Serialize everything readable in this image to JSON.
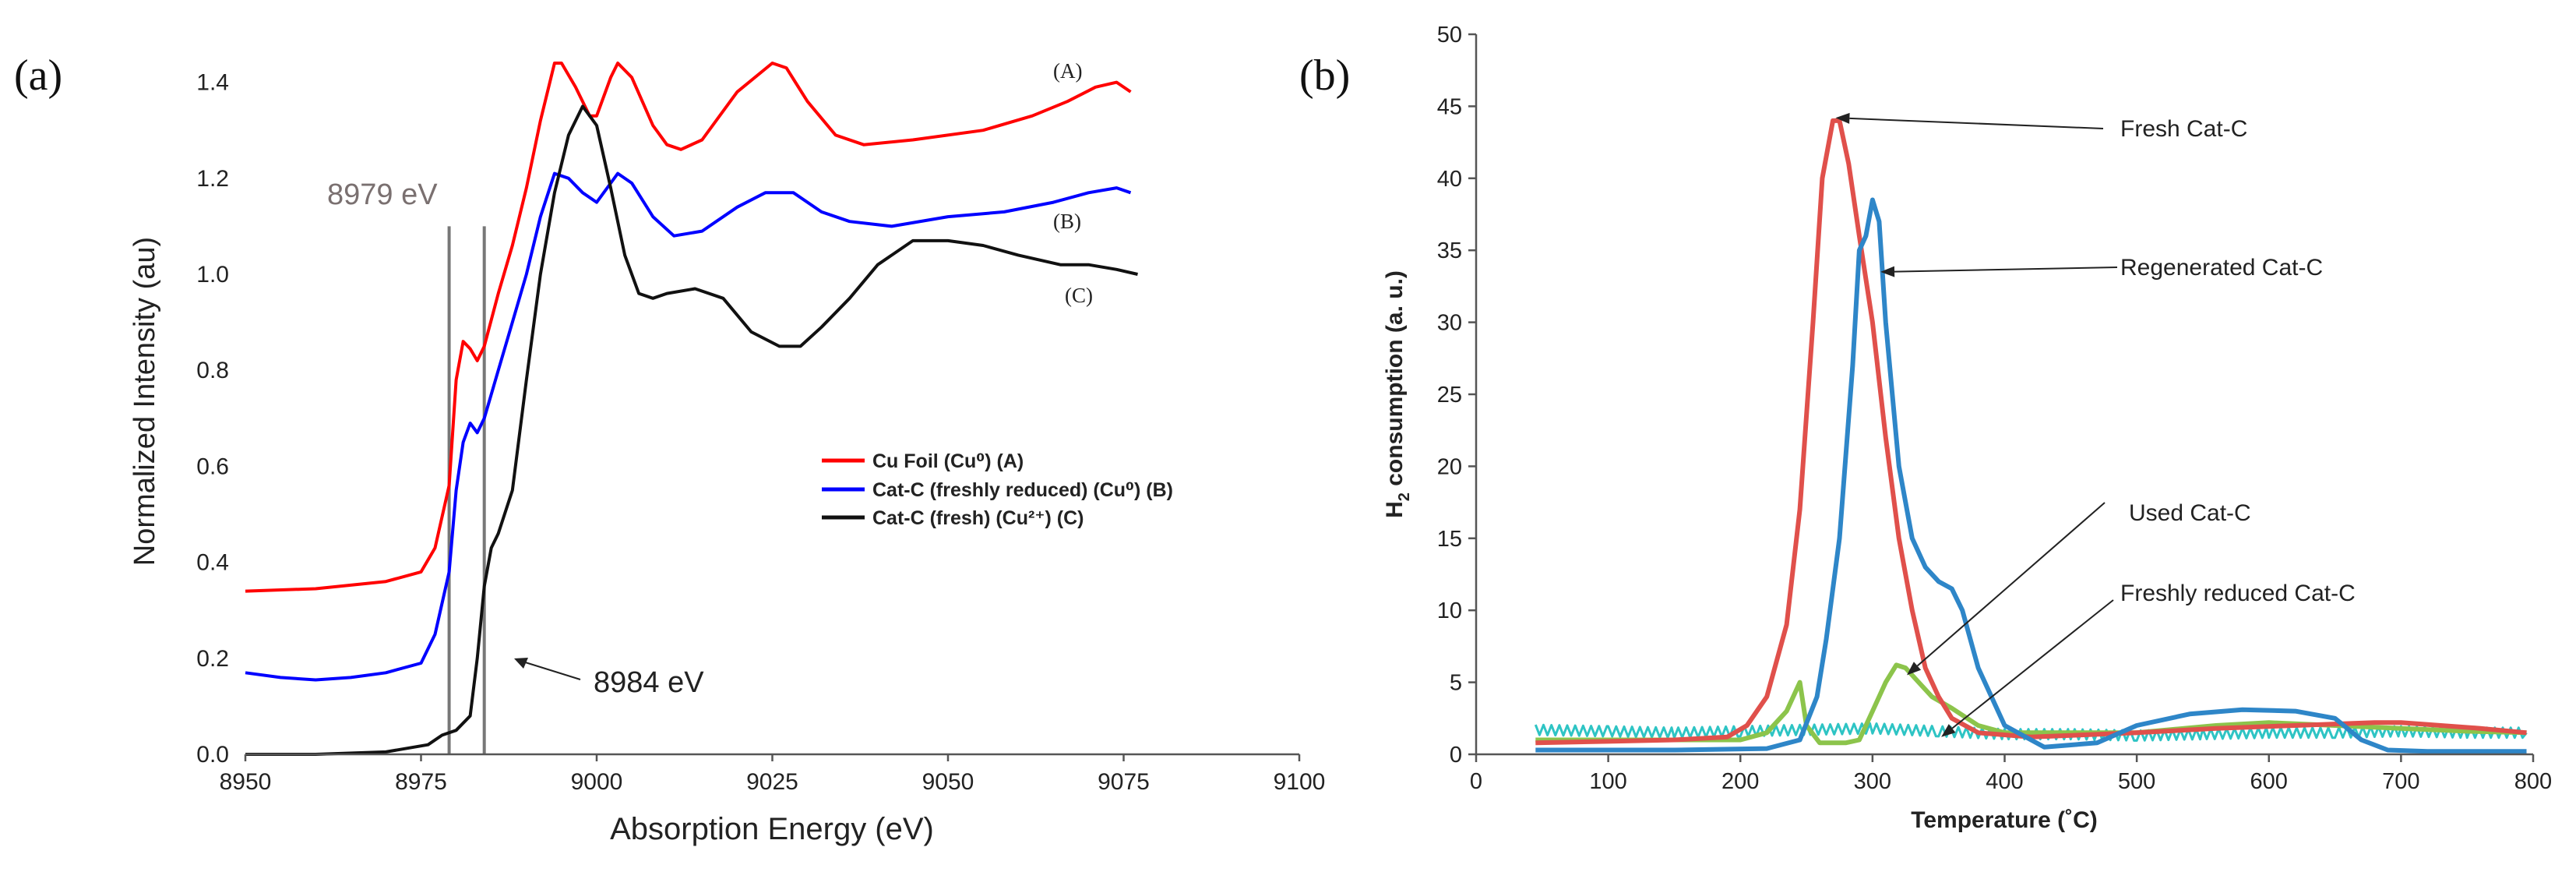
{
  "chart_data": [
    {
      "type": "line",
      "panel_label": "(a)",
      "xlabel": "Absorption Energy (eV)",
      "ylabel": "Normalized Intensity (au)",
      "xlim": [
        8950,
        9100
      ],
      "ylim": [
        0.0,
        1.5
      ],
      "xticks": [
        "8950",
        "8975",
        "9000",
        "9025",
        "9050",
        "9075",
        "9100"
      ],
      "yticks": [
        "0.0",
        "0.2",
        "0.4",
        "0.6",
        "0.8",
        "1.0",
        "1.2",
        "1.4"
      ],
      "series": [
        {
          "name": "Cu Foil (Cu⁰) (A)",
          "curve_label": "(A)",
          "color": "#ff0000",
          "points": [
            [
              8950,
              0.34
            ],
            [
              8960,
              0.345
            ],
            [
              8970,
              0.36
            ],
            [
              8975,
              0.38
            ],
            [
              8977,
              0.43
            ],
            [
              8979,
              0.56
            ],
            [
              8980,
              0.78
            ],
            [
              8981,
              0.86
            ],
            [
              8982,
              0.845
            ],
            [
              8983,
              0.82
            ],
            [
              8984,
              0.85
            ],
            [
              8986,
              0.96
            ],
            [
              8988,
              1.06
            ],
            [
              8990,
              1.18
            ],
            [
              8992,
              1.32
            ],
            [
              8994,
              1.44
            ],
            [
              8995,
              1.44
            ],
            [
              8997,
              1.39
            ],
            [
              8999,
              1.33
            ],
            [
              9000,
              1.33
            ],
            [
              9002,
              1.41
            ],
            [
              9003,
              1.44
            ],
            [
              9005,
              1.41
            ],
            [
              9008,
              1.31
            ],
            [
              9010,
              1.27
            ],
            [
              9012,
              1.26
            ],
            [
              9015,
              1.28
            ],
            [
              9020,
              1.38
            ],
            [
              9025,
              1.44
            ],
            [
              9027,
              1.43
            ],
            [
              9030,
              1.36
            ],
            [
              9034,
              1.29
            ],
            [
              9038,
              1.27
            ],
            [
              9045,
              1.28
            ],
            [
              9055,
              1.3
            ],
            [
              9062,
              1.33
            ],
            [
              9067,
              1.36
            ],
            [
              9071,
              1.39
            ],
            [
              9074,
              1.4
            ],
            [
              9076,
              1.38
            ]
          ]
        },
        {
          "name": "Cat-C (freshly reduced) (Cu⁰) (B)",
          "curve_label": "(B)",
          "color": "#0000ff",
          "points": [
            [
              8950,
              0.17
            ],
            [
              8955,
              0.16
            ],
            [
              8960,
              0.155
            ],
            [
              8965,
              0.16
            ],
            [
              8970,
              0.17
            ],
            [
              8975,
              0.19
            ],
            [
              8977,
              0.25
            ],
            [
              8979,
              0.38
            ],
            [
              8980,
              0.55
            ],
            [
              8981,
              0.65
            ],
            [
              8982,
              0.69
            ],
            [
              8983,
              0.67
            ],
            [
              8984,
              0.7
            ],
            [
              8986,
              0.8
            ],
            [
              8988,
              0.9
            ],
            [
              8990,
              1.0
            ],
            [
              8992,
              1.12
            ],
            [
              8994,
              1.21
            ],
            [
              8996,
              1.2
            ],
            [
              8998,
              1.17
            ],
            [
              9000,
              1.15
            ],
            [
              9002,
              1.19
            ],
            [
              9003,
              1.21
            ],
            [
              9005,
              1.19
            ],
            [
              9008,
              1.12
            ],
            [
              9011,
              1.08
            ],
            [
              9015,
              1.09
            ],
            [
              9020,
              1.14
            ],
            [
              9024,
              1.17
            ],
            [
              9028,
              1.17
            ],
            [
              9032,
              1.13
            ],
            [
              9036,
              1.11
            ],
            [
              9042,
              1.1
            ],
            [
              9050,
              1.12
            ],
            [
              9058,
              1.13
            ],
            [
              9065,
              1.15
            ],
            [
              9070,
              1.17
            ],
            [
              9074,
              1.18
            ],
            [
              9076,
              1.17
            ]
          ]
        },
        {
          "name": "Cat-C (fresh) (Cu²⁺) (C)",
          "curve_label": "(C)",
          "color": "#111111",
          "points": [
            [
              8950,
              0.0
            ],
            [
              8960,
              0.0
            ],
            [
              8970,
              0.005
            ],
            [
              8976,
              0.02
            ],
            [
              8978,
              0.04
            ],
            [
              8980,
              0.05
            ],
            [
              8982,
              0.08
            ],
            [
              8983,
              0.2
            ],
            [
              8984,
              0.35
            ],
            [
              8985,
              0.43
            ],
            [
              8986,
              0.46
            ],
            [
              8988,
              0.55
            ],
            [
              8990,
              0.78
            ],
            [
              8992,
              1.0
            ],
            [
              8994,
              1.17
            ],
            [
              8996,
              1.29
            ],
            [
              8998,
              1.35
            ],
            [
              9000,
              1.31
            ],
            [
              9002,
              1.18
            ],
            [
              9004,
              1.04
            ],
            [
              9006,
              0.96
            ],
            [
              9008,
              0.95
            ],
            [
              9010,
              0.96
            ],
            [
              9014,
              0.97
            ],
            [
              9018,
              0.95
            ],
            [
              9022,
              0.88
            ],
            [
              9026,
              0.85
            ],
            [
              9029,
              0.85
            ],
            [
              9032,
              0.89
            ],
            [
              9036,
              0.95
            ],
            [
              9040,
              1.02
            ],
            [
              9045,
              1.07
            ],
            [
              9050,
              1.07
            ],
            [
              9055,
              1.06
            ],
            [
              9060,
              1.04
            ],
            [
              9066,
              1.02
            ],
            [
              9070,
              1.02
            ],
            [
              9074,
              1.01
            ],
            [
              9077,
              1.0
            ]
          ]
        }
      ],
      "vertical_lines": [
        8979,
        8984
      ],
      "annotations": [
        "8979 eV",
        "8984 eV"
      ]
    },
    {
      "type": "line",
      "panel_label": "(b)",
      "xlabel": "Temperature (˚C)",
      "ylabel": "H₂ consumption (a. u.)",
      "ylabel_prefix": "H",
      "ylabel_sub": "2",
      "ylabel_suffix": " consumption (a. u.)",
      "xlim": [
        0,
        800
      ],
      "ylim": [
        0,
        50
      ],
      "xticks": [
        "0",
        "100",
        "200",
        "300",
        "400",
        "500",
        "600",
        "700",
        "800"
      ],
      "yticks": [
        "0",
        "5",
        "10",
        "15",
        "20",
        "25",
        "30",
        "35",
        "40",
        "45",
        "50"
      ],
      "series": [
        {
          "name": "Fresh Cat-C",
          "color": "#e0504b",
          "points": [
            [
              45,
              0.8
            ],
            [
              100,
              0.9
            ],
            [
              150,
              1.0
            ],
            [
              190,
              1.2
            ],
            [
              205,
              2.0
            ],
            [
              220,
              4.0
            ],
            [
              235,
              9.0
            ],
            [
              245,
              17.0
            ],
            [
              255,
              30.0
            ],
            [
              262,
              40.0
            ],
            [
              270,
              44.0
            ],
            [
              275,
              44.0
            ],
            [
              282,
              41.0
            ],
            [
              290,
              36.0
            ],
            [
              300,
              30.0
            ],
            [
              310,
              22.0
            ],
            [
              320,
              15.0
            ],
            [
              330,
              10.0
            ],
            [
              340,
              6.0
            ],
            [
              350,
              4.0
            ],
            [
              360,
              2.5
            ],
            [
              380,
              1.5
            ],
            [
              420,
              1.2
            ],
            [
              500,
              1.5
            ],
            [
              560,
              1.8
            ],
            [
              620,
              2.0
            ],
            [
              680,
              2.2
            ],
            [
              700,
              2.2
            ],
            [
              760,
              1.8
            ],
            [
              795,
              1.5
            ]
          ]
        },
        {
          "name": "Regenerated Cat-C",
          "color": "#2e86c8",
          "points": [
            [
              45,
              0.3
            ],
            [
              150,
              0.3
            ],
            [
              220,
              0.4
            ],
            [
              245,
              1.0
            ],
            [
              258,
              4.0
            ],
            [
              265,
              8.0
            ],
            [
              275,
              15.0
            ],
            [
              285,
              27.0
            ],
            [
              290,
              35.0
            ],
            [
              295,
              36.0
            ],
            [
              300,
              38.5
            ],
            [
              305,
              37.0
            ],
            [
              310,
              30.0
            ],
            [
              320,
              20.0
            ],
            [
              330,
              15.0
            ],
            [
              340,
              13.0
            ],
            [
              350,
              12.0
            ],
            [
              360,
              11.5
            ],
            [
              368,
              10.0
            ],
            [
              380,
              6.0
            ],
            [
              400,
              2.0
            ],
            [
              430,
              0.5
            ],
            [
              470,
              0.8
            ],
            [
              500,
              2.0
            ],
            [
              540,
              2.8
            ],
            [
              580,
              3.1
            ],
            [
              620,
              3.0
            ],
            [
              650,
              2.5
            ],
            [
              670,
              1.0
            ],
            [
              690,
              0.3
            ],
            [
              720,
              0.2
            ],
            [
              795,
              0.2
            ]
          ]
        },
        {
          "name": "Used Cat-C",
          "color": "#8cc44b",
          "points": [
            [
              45,
              1.0
            ],
            [
              150,
              1.0
            ],
            [
              200,
              1.0
            ],
            [
              220,
              1.5
            ],
            [
              235,
              3.0
            ],
            [
              245,
              5.0
            ],
            [
              250,
              2.0
            ],
            [
              260,
              0.8
            ],
            [
              280,
              0.8
            ],
            [
              290,
              1.0
            ],
            [
              300,
              3.0
            ],
            [
              310,
              5.0
            ],
            [
              318,
              6.2
            ],
            [
              325,
              6.0
            ],
            [
              335,
              5.0
            ],
            [
              345,
              4.0
            ],
            [
              360,
              3.2
            ],
            [
              380,
              2.0
            ],
            [
              400,
              1.5
            ],
            [
              450,
              1.5
            ],
            [
              500,
              1.5
            ],
            [
              560,
              2.0
            ],
            [
              600,
              2.2
            ],
            [
              650,
              2.0
            ],
            [
              700,
              1.8
            ],
            [
              750,
              1.6
            ],
            [
              795,
              1.5
            ]
          ]
        },
        {
          "name": "Freshly reduced Cat-C",
          "color": "#2ec4c4",
          "points": [
            [
              45,
              1.7
            ],
            [
              100,
              1.6
            ],
            [
              150,
              1.5
            ],
            [
              200,
              1.6
            ],
            [
              250,
              1.7
            ],
            [
              300,
              1.8
            ],
            [
              350,
              1.6
            ],
            [
              400,
              1.4
            ],
            [
              450,
              1.4
            ],
            [
              500,
              1.3
            ],
            [
              550,
              1.4
            ],
            [
              600,
              1.5
            ],
            [
              650,
              1.5
            ],
            [
              700,
              1.6
            ],
            [
              750,
              1.5
            ],
            [
              795,
              1.5
            ]
          ]
        }
      ],
      "annotations": [
        {
          "text": "Fresh Cat-C",
          "target": [
            272,
            44.2
          ]
        },
        {
          "text": "Regenerated Cat-C",
          "target": [
            306,
            33.5
          ]
        },
        {
          "text": "Used Cat-C",
          "target": [
            326,
            5.5
          ]
        },
        {
          "text": "Freshly reduced Cat-C",
          "target": [
            352,
            1.2
          ]
        }
      ]
    }
  ]
}
